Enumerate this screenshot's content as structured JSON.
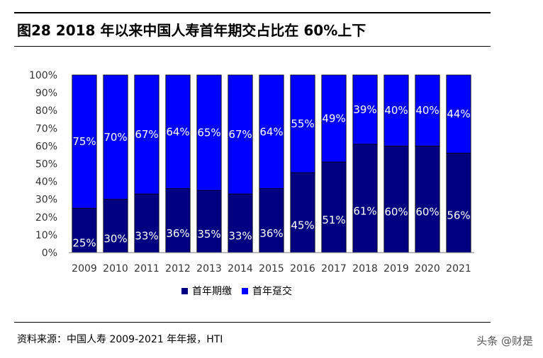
{
  "title": "图28 2018 年以来中国人寿首年期交占比在 60%上下",
  "source": "资料来源：中国人寿 2009-2021 年年报，HTI",
  "watermark": "头条 @财是",
  "colors": {
    "series_1": "#000080",
    "series_2": "#0000ff",
    "label_text": "#ffffff",
    "axis_text": "#333333"
  },
  "chart_data": {
    "type": "bar",
    "stacked": true,
    "percent": true,
    "categories": [
      "2009",
      "2010",
      "2011",
      "2012",
      "2013",
      "2014",
      "2015",
      "2016",
      "2017",
      "2018",
      "2019",
      "2020",
      "2021"
    ],
    "series": [
      {
        "name": "首年期缴",
        "values": [
          25,
          30,
          33,
          36,
          35,
          33,
          36,
          45,
          51,
          61,
          60,
          60,
          56
        ]
      },
      {
        "name": "首年趸交",
        "values": [
          75,
          70,
          67,
          64,
          65,
          67,
          64,
          55,
          49,
          39,
          40,
          40,
          44
        ]
      }
    ],
    "ylim": [
      0,
      100
    ],
    "yticks": [
      "0%",
      "10%",
      "20%",
      "30%",
      "40%",
      "50%",
      "60%",
      "70%",
      "80%",
      "90%",
      "100%"
    ],
    "grid": false,
    "legend_position": "bottom"
  }
}
